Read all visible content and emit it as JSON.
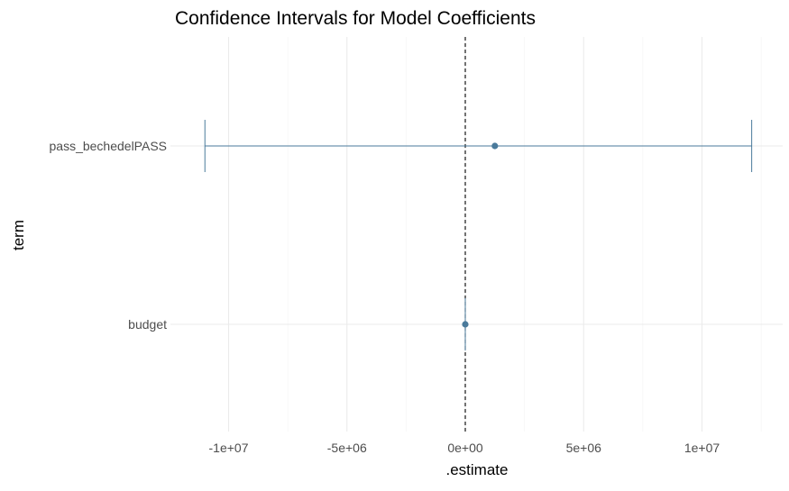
{
  "chart_data": {
    "type": "errorbar",
    "title": "Confidence Intervals for Model Coefficients",
    "xlabel": ".estimate",
    "ylabel": "term",
    "xlim": [
      -12000000,
      13000000
    ],
    "x_ticks": [
      -10000000,
      -5000000,
      0,
      5000000,
      10000000
    ],
    "x_tick_labels": [
      "-1e+07",
      "-5e+06",
      "0e+00",
      "5e+06",
      "1e+07"
    ],
    "reference_line": {
      "x": 0,
      "style": "dashed",
      "color": "#000000"
    },
    "grid": true,
    "color": "#4a7a9b",
    "terms": [
      {
        "term": "pass_bechedelPASS",
        "estimate": 1250000,
        "lower": -11000000,
        "upper": 12100000
      },
      {
        "term": "budget",
        "estimate": 0,
        "lower": 0,
        "upper": 0
      }
    ]
  }
}
